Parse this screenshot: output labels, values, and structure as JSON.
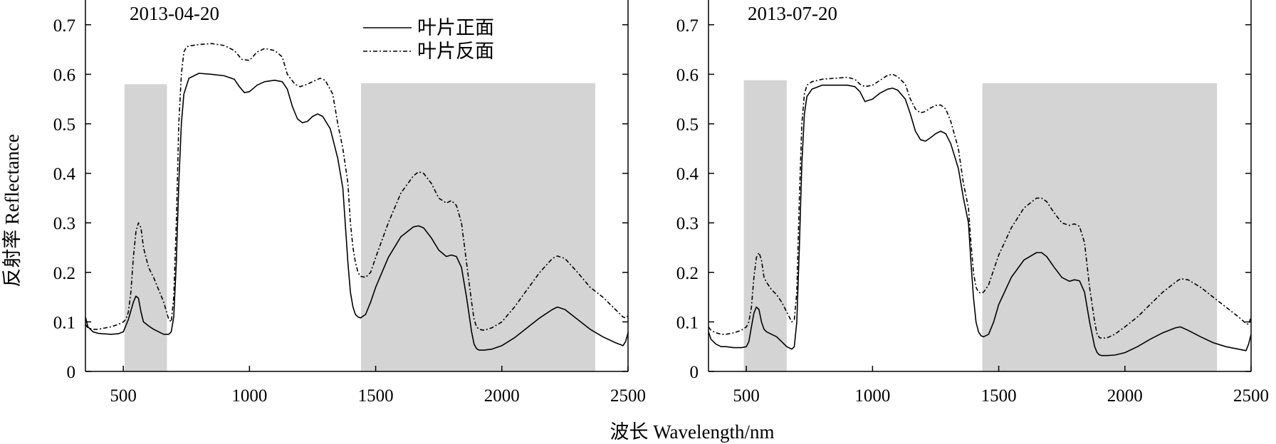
{
  "figure": {
    "xlabel": "波长 Wavelength/nm",
    "ylabel": "反射率 Reflectance"
  },
  "legend": {
    "front_label": "叶片正面",
    "back_label": "叶片反面"
  },
  "colors": {
    "line": "#000000",
    "shade": "#d4d4d4"
  },
  "chart_data": [
    {
      "type": "line",
      "date_label": "2013-04-20",
      "xlim": [
        350,
        2500
      ],
      "ylim": [
        0,
        0.75
      ],
      "xticks": [
        500,
        1000,
        1500,
        2000,
        2500
      ],
      "yticks": [
        0,
        0.1,
        0.2,
        0.3,
        0.4,
        0.5,
        0.6,
        0.7
      ],
      "ytick_labels": [
        "0",
        "0.1",
        "0.2",
        "0.3",
        "0.4",
        "0.5",
        "0.6",
        "0.7"
      ],
      "shaded_ranges": [
        {
          "x": [
            505,
            673
          ],
          "y": [
            0,
            0.58
          ]
        },
        {
          "x": [
            1442,
            2370
          ],
          "y": [
            0,
            0.582
          ]
        }
      ],
      "grid": false,
      "legend_position": "top-center",
      "series": [
        {
          "name": "叶片正面",
          "style": "solid",
          "x": [
            350,
            360,
            380,
            400,
            420,
            450,
            480,
            500,
            520,
            540,
            550,
            560,
            570,
            580,
            600,
            620,
            640,
            660,
            680,
            690,
            700,
            710,
            720,
            730,
            740,
            760,
            800,
            850,
            900,
            940,
            960,
            980,
            1000,
            1030,
            1060,
            1100,
            1130,
            1150,
            1170,
            1190,
            1210,
            1230,
            1250,
            1270,
            1290,
            1320,
            1350,
            1370,
            1390,
            1400,
            1410,
            1420,
            1430,
            1440,
            1460,
            1480,
            1500,
            1550,
            1600,
            1650,
            1670,
            1690,
            1720,
            1750,
            1780,
            1800,
            1820,
            1840,
            1860,
            1880,
            1890,
            1900,
            1910,
            1930,
            1960,
            2000,
            2050,
            2100,
            2150,
            2200,
            2220,
            2250,
            2300,
            2350,
            2400,
            2450,
            2480,
            2490,
            2500
          ],
          "y": [
            0.11,
            0.09,
            0.08,
            0.077,
            0.076,
            0.075,
            0.076,
            0.08,
            0.105,
            0.14,
            0.152,
            0.148,
            0.12,
            0.1,
            0.092,
            0.085,
            0.08,
            0.075,
            0.075,
            0.08,
            0.11,
            0.22,
            0.38,
            0.5,
            0.56,
            0.592,
            0.602,
            0.6,
            0.597,
            0.59,
            0.575,
            0.563,
            0.565,
            0.578,
            0.585,
            0.588,
            0.585,
            0.57,
            0.535,
            0.51,
            0.502,
            0.505,
            0.515,
            0.52,
            0.515,
            0.49,
            0.43,
            0.37,
            0.22,
            0.16,
            0.13,
            0.115,
            0.11,
            0.108,
            0.115,
            0.14,
            0.17,
            0.23,
            0.272,
            0.292,
            0.294,
            0.29,
            0.27,
            0.245,
            0.232,
            0.235,
            0.232,
            0.21,
            0.15,
            0.08,
            0.055,
            0.046,
            0.043,
            0.043,
            0.045,
            0.052,
            0.068,
            0.088,
            0.108,
            0.125,
            0.13,
            0.125,
            0.105,
            0.085,
            0.07,
            0.058,
            0.052,
            0.06,
            0.078
          ]
        },
        {
          "name": "叶片反面",
          "style": "dashdot",
          "x": [
            350,
            360,
            380,
            400,
            420,
            450,
            480,
            500,
            510,
            520,
            530,
            540,
            550,
            560,
            570,
            580,
            600,
            620,
            640,
            660,
            680,
            690,
            700,
            710,
            720,
            730,
            740,
            750,
            760,
            800,
            850,
            900,
            940,
            970,
            1000,
            1030,
            1060,
            1100,
            1130,
            1150,
            1180,
            1200,
            1220,
            1250,
            1280,
            1300,
            1330,
            1350,
            1370,
            1390,
            1400,
            1410,
            1420,
            1430,
            1440,
            1460,
            1480,
            1500,
            1550,
            1600,
            1650,
            1670,
            1690,
            1720,
            1750,
            1780,
            1800,
            1820,
            1840,
            1860,
            1880,
            1890,
            1900,
            1910,
            1930,
            1960,
            2000,
            2050,
            2100,
            2150,
            2200,
            2220,
            2250,
            2300,
            2350,
            2400,
            2450,
            2480,
            2490,
            2500
          ],
          "y": [
            0.095,
            0.088,
            0.085,
            0.085,
            0.087,
            0.09,
            0.095,
            0.1,
            0.105,
            0.12,
            0.16,
            0.23,
            0.282,
            0.3,
            0.29,
            0.25,
            0.21,
            0.19,
            0.165,
            0.14,
            0.105,
            0.1,
            0.15,
            0.3,
            0.5,
            0.6,
            0.645,
            0.655,
            0.657,
            0.66,
            0.662,
            0.658,
            0.648,
            0.63,
            0.628,
            0.645,
            0.652,
            0.648,
            0.635,
            0.6,
            0.58,
            0.575,
            0.578,
            0.585,
            0.592,
            0.588,
            0.56,
            0.5,
            0.45,
            0.38,
            0.3,
            0.25,
            0.22,
            0.2,
            0.192,
            0.19,
            0.2,
            0.23,
            0.3,
            0.36,
            0.395,
            0.403,
            0.4,
            0.38,
            0.35,
            0.34,
            0.345,
            0.335,
            0.3,
            0.22,
            0.14,
            0.105,
            0.09,
            0.085,
            0.083,
            0.088,
            0.1,
            0.13,
            0.165,
            0.2,
            0.228,
            0.233,
            0.228,
            0.2,
            0.17,
            0.15,
            0.125,
            0.11,
            0.108,
            0.112
          ]
        }
      ]
    },
    {
      "type": "line",
      "date_label": "2013-07-20",
      "xlim": [
        350,
        2500
      ],
      "ylim": [
        0,
        0.75
      ],
      "xticks": [
        500,
        1000,
        1500,
        2000,
        2500
      ],
      "yticks": [
        0,
        0.1,
        0.2,
        0.3,
        0.4,
        0.5,
        0.6,
        0.7
      ],
      "ytick_labels": [
        "0",
        "0.1",
        "0.2",
        "0.3",
        "0.4",
        "0.5",
        "0.6",
        "0.7"
      ],
      "shaded_ranges": [
        {
          "x": [
            490,
            660
          ],
          "y": [
            0,
            0.588
          ]
        },
        {
          "x": [
            1435,
            2365
          ],
          "y": [
            0,
            0.582
          ]
        }
      ],
      "grid": false,
      "series": [
        {
          "name": "叶片正面",
          "style": "solid",
          "x": [
            350,
            360,
            380,
            400,
            420,
            450,
            480,
            500,
            510,
            520,
            530,
            540,
            550,
            560,
            570,
            580,
            600,
            620,
            640,
            660,
            680,
            690,
            700,
            710,
            720,
            730,
            740,
            760,
            800,
            850,
            900,
            930,
            950,
            970,
            1000,
            1030,
            1060,
            1080,
            1100,
            1130,
            1150,
            1170,
            1190,
            1210,
            1230,
            1250,
            1270,
            1290,
            1310,
            1340,
            1360,
            1380,
            1390,
            1400,
            1410,
            1420,
            1430,
            1440,
            1460,
            1480,
            1500,
            1550,
            1600,
            1650,
            1670,
            1690,
            1720,
            1750,
            1780,
            1800,
            1820,
            1840,
            1860,
            1880,
            1890,
            1900,
            1910,
            1930,
            1960,
            2000,
            2050,
            2100,
            2150,
            2200,
            2220,
            2250,
            2300,
            2350,
            2400,
            2450,
            2480,
            2490,
            2500
          ],
          "y": [
            0.08,
            0.065,
            0.055,
            0.05,
            0.05,
            0.048,
            0.048,
            0.05,
            0.06,
            0.09,
            0.118,
            0.13,
            0.125,
            0.1,
            0.085,
            0.08,
            0.075,
            0.07,
            0.06,
            0.05,
            0.045,
            0.05,
            0.1,
            0.25,
            0.42,
            0.52,
            0.555,
            0.57,
            0.578,
            0.578,
            0.578,
            0.575,
            0.565,
            0.545,
            0.55,
            0.562,
            0.57,
            0.572,
            0.568,
            0.55,
            0.52,
            0.485,
            0.468,
            0.465,
            0.472,
            0.48,
            0.485,
            0.48,
            0.46,
            0.41,
            0.35,
            0.3,
            0.22,
            0.15,
            0.1,
            0.08,
            0.072,
            0.07,
            0.075,
            0.1,
            0.135,
            0.19,
            0.225,
            0.24,
            0.24,
            0.232,
            0.21,
            0.19,
            0.182,
            0.185,
            0.183,
            0.16,
            0.1,
            0.05,
            0.038,
            0.033,
            0.032,
            0.032,
            0.033,
            0.038,
            0.05,
            0.065,
            0.078,
            0.088,
            0.09,
            0.083,
            0.07,
            0.058,
            0.05,
            0.045,
            0.042,
            0.055,
            0.075
          ]
        },
        {
          "name": "叶片反面",
          "style": "dashdot",
          "x": [
            350,
            360,
            380,
            400,
            420,
            450,
            480,
            500,
            510,
            520,
            530,
            540,
            550,
            560,
            570,
            580,
            600,
            620,
            640,
            660,
            680,
            690,
            700,
            710,
            720,
            730,
            740,
            760,
            800,
            850,
            900,
            930,
            950,
            970,
            1000,
            1030,
            1060,
            1080,
            1100,
            1130,
            1150,
            1170,
            1190,
            1210,
            1230,
            1250,
            1270,
            1290,
            1310,
            1340,
            1360,
            1380,
            1390,
            1400,
            1410,
            1420,
            1430,
            1440,
            1460,
            1480,
            1500,
            1550,
            1600,
            1650,
            1670,
            1690,
            1720,
            1750,
            1780,
            1800,
            1820,
            1840,
            1860,
            1880,
            1890,
            1900,
            1910,
            1930,
            1960,
            2000,
            2050,
            2100,
            2150,
            2200,
            2220,
            2250,
            2300,
            2350,
            2400,
            2450,
            2480,
            2490,
            2500
          ],
          "y": [
            0.09,
            0.083,
            0.078,
            0.075,
            0.075,
            0.078,
            0.083,
            0.09,
            0.1,
            0.13,
            0.19,
            0.23,
            0.24,
            0.225,
            0.19,
            0.18,
            0.165,
            0.155,
            0.14,
            0.12,
            0.1,
            0.105,
            0.16,
            0.35,
            0.5,
            0.56,
            0.578,
            0.585,
            0.59,
            0.592,
            0.594,
            0.59,
            0.58,
            0.575,
            0.578,
            0.588,
            0.598,
            0.6,
            0.595,
            0.58,
            0.55,
            0.53,
            0.522,
            0.525,
            0.532,
            0.537,
            0.538,
            0.53,
            0.505,
            0.45,
            0.38,
            0.33,
            0.26,
            0.2,
            0.17,
            0.16,
            0.158,
            0.16,
            0.175,
            0.205,
            0.235,
            0.29,
            0.33,
            0.35,
            0.35,
            0.343,
            0.32,
            0.3,
            0.295,
            0.298,
            0.293,
            0.26,
            0.17,
            0.1,
            0.075,
            0.068,
            0.067,
            0.068,
            0.075,
            0.09,
            0.11,
            0.135,
            0.16,
            0.18,
            0.187,
            0.185,
            0.17,
            0.15,
            0.13,
            0.11,
            0.097,
            0.095,
            0.11
          ]
        }
      ]
    }
  ]
}
